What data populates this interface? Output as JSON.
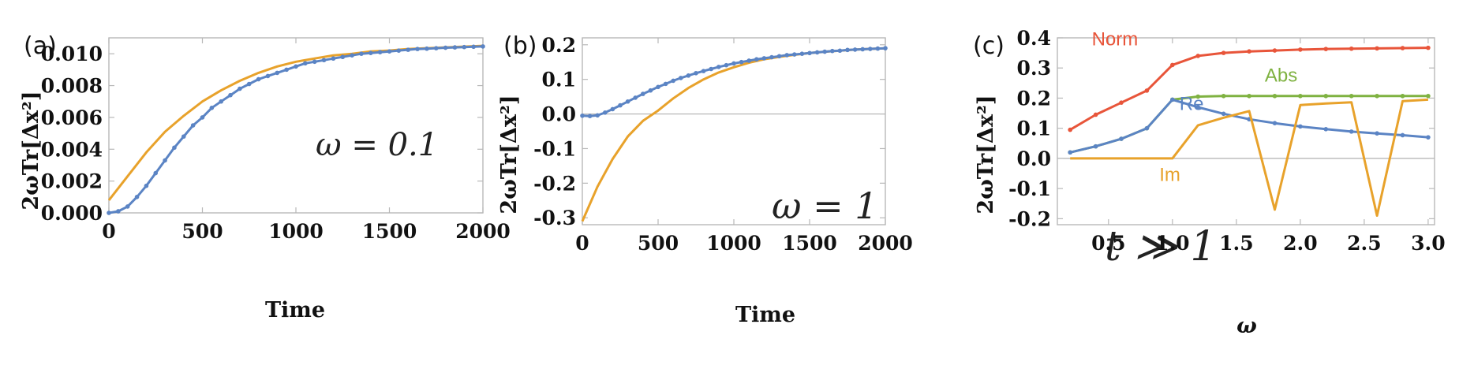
{
  "chart_data": [
    {
      "type": "line",
      "panel_label": "(a)",
      "annotation": "ω = 0.1",
      "xlabel": "Time",
      "ylabel": "2ωTr[Δx²]",
      "xlim": [
        0,
        2000
      ],
      "ylim": [
        0,
        0.011
      ],
      "xticks": [
        "0",
        "500",
        "1000",
        "1500",
        "2000"
      ],
      "yticks": [
        "0.000",
        "0.002",
        "0.004",
        "0.006",
        "0.008",
        "0.010"
      ],
      "series": [
        {
          "color": "#e8a22b",
          "marker": false,
          "x": [
            0,
            100,
            200,
            300,
            400,
            500,
            600,
            700,
            800,
            900,
            1000,
            1100,
            1200,
            1300,
            1400,
            1500,
            1600,
            1700,
            1800,
            1900,
            2000
          ],
          "y": [
            0.0008,
            0.0023,
            0.0038,
            0.0051,
            0.0061,
            0.007,
            0.0077,
            0.0083,
            0.0088,
            0.0092,
            0.0095,
            0.0097,
            0.0099,
            0.01,
            0.01015,
            0.0102,
            0.0103,
            0.01035,
            0.0104,
            0.01045,
            0.0105
          ]
        },
        {
          "color": "#5b84c4",
          "marker": true,
          "x": [
            0,
            50,
            100,
            150,
            200,
            250,
            300,
            350,
            400,
            450,
            500,
            550,
            600,
            650,
            700,
            750,
            800,
            850,
            900,
            950,
            1000,
            1050,
            1100,
            1150,
            1200,
            1250,
            1300,
            1350,
            1400,
            1450,
            1500,
            1550,
            1600,
            1650,
            1700,
            1750,
            1800,
            1850,
            1900,
            1950,
            2000
          ],
          "y": [
            0.0,
            0.0001,
            0.0004,
            0.001,
            0.0017,
            0.0025,
            0.0033,
            0.0041,
            0.0048,
            0.0055,
            0.006,
            0.0066,
            0.007,
            0.0074,
            0.0078,
            0.0081,
            0.0084,
            0.0086,
            0.0088,
            0.009,
            0.0092,
            0.0094,
            0.0095,
            0.0096,
            0.0097,
            0.0098,
            0.0099,
            0.01,
            0.01005,
            0.0101,
            0.01015,
            0.0102,
            0.01025,
            0.0103,
            0.01032,
            0.01035,
            0.01038,
            0.0104,
            0.01042,
            0.01044,
            0.01046
          ]
        }
      ]
    },
    {
      "type": "line",
      "panel_label": "(b)",
      "annotation": "ω = 1",
      "xlabel": "Time",
      "ylabel": "2ωTr[Δx²]",
      "xlim": [
        0,
        2000
      ],
      "ylim": [
        -0.32,
        0.22
      ],
      "xticks": [
        "0",
        "500",
        "1000",
        "1500",
        "2000"
      ],
      "yticks": [
        "-0.3",
        "-0.2",
        "-0.1",
        "0.0",
        "0.1",
        "0.2"
      ],
      "series": [
        {
          "color": "#e8a22b",
          "marker": false,
          "x": [
            0,
            100,
            200,
            300,
            400,
            500,
            600,
            700,
            800,
            900,
            1000,
            1100,
            1200,
            1300,
            1400,
            1500,
            1600,
            1700,
            1800,
            1900,
            2000
          ],
          "y": [
            -0.31,
            -0.21,
            -0.13,
            -0.065,
            -0.02,
            0.01,
            0.045,
            0.075,
            0.1,
            0.12,
            0.135,
            0.148,
            0.158,
            0.165,
            0.171,
            0.176,
            0.18,
            0.183,
            0.186,
            0.188,
            0.19
          ]
        },
        {
          "color": "#5b84c4",
          "marker": true,
          "x": [
            0,
            50,
            100,
            150,
            200,
            250,
            300,
            350,
            400,
            450,
            500,
            550,
            600,
            650,
            700,
            750,
            800,
            850,
            900,
            950,
            1000,
            1050,
            1100,
            1150,
            1200,
            1250,
            1300,
            1350,
            1400,
            1450,
            1500,
            1550,
            1600,
            1650,
            1700,
            1750,
            1800,
            1850,
            1900,
            1950,
            2000
          ],
          "y": [
            -0.005,
            -0.006,
            -0.004,
            0.004,
            0.014,
            0.025,
            0.036,
            0.047,
            0.058,
            0.068,
            0.078,
            0.087,
            0.096,
            0.104,
            0.111,
            0.118,
            0.124,
            0.13,
            0.136,
            0.141,
            0.146,
            0.15,
            0.154,
            0.158,
            0.161,
            0.164,
            0.167,
            0.17,
            0.172,
            0.174,
            0.176,
            0.178,
            0.18,
            0.182,
            0.183,
            0.185,
            0.186,
            0.187,
            0.188,
            0.189,
            0.19
          ]
        }
      ]
    },
    {
      "type": "line",
      "panel_label": "(c)",
      "annotation": "t ≫ 1",
      "xlabel": "ω",
      "ylabel": "2ωTr[Δx²]",
      "xlim": [
        0.1,
        3.05
      ],
      "ylim": [
        -0.22,
        0.4
      ],
      "xticks": [
        "0.5",
        "1.0",
        "1.5",
        "2.0",
        "2.5",
        "3.0"
      ],
      "yticks": [
        "-0.2",
        "-0.1",
        "0.0",
        "0.1",
        "0.2",
        "0.3",
        "0.4"
      ],
      "series": [
        {
          "name": "Norm",
          "color": "#e8553a",
          "marker": true,
          "x": [
            0.2,
            0.4,
            0.6,
            0.8,
            1.0,
            1.2,
            1.4,
            1.6,
            1.8,
            2.0,
            2.2,
            2.4,
            2.6,
            2.8,
            3.0
          ],
          "y": [
            0.095,
            0.145,
            0.185,
            0.225,
            0.31,
            0.34,
            0.35,
            0.355,
            0.358,
            0.361,
            0.363,
            0.364,
            0.365,
            0.366,
            0.367
          ]
        },
        {
          "name": "Abs",
          "color": "#7fb241",
          "marker": true,
          "x": [
            0.2,
            0.4,
            0.6,
            0.8,
            1.0,
            1.2,
            1.4,
            1.6,
            1.8,
            2.0,
            2.2,
            2.4,
            2.6,
            2.8,
            3.0
          ],
          "y": [
            0.02,
            0.04,
            0.065,
            0.1,
            0.195,
            0.205,
            0.207,
            0.207,
            0.207,
            0.207,
            0.207,
            0.207,
            0.207,
            0.207,
            0.207
          ]
        },
        {
          "name": "Re",
          "color": "#5b84c4",
          "marker": true,
          "x": [
            0.2,
            0.4,
            0.6,
            0.8,
            1.0,
            1.2,
            1.4,
            1.6,
            1.8,
            2.0,
            2.2,
            2.4,
            2.6,
            2.8,
            3.0
          ],
          "y": [
            0.02,
            0.04,
            0.065,
            0.1,
            0.195,
            0.17,
            0.148,
            0.13,
            0.117,
            0.106,
            0.097,
            0.089,
            0.083,
            0.077,
            0.07
          ]
        },
        {
          "name": "Im",
          "color": "#e8a22b",
          "marker": false,
          "x": [
            0.2,
            0.4,
            0.6,
            0.8,
            1.0,
            1.2,
            1.4,
            1.6,
            1.8,
            2.0,
            2.2,
            2.4,
            2.6,
            2.8,
            3.0
          ],
          "y": [
            0.0,
            0.0,
            0.0,
            0.0,
            0.0,
            0.11,
            0.135,
            0.157,
            -0.17,
            0.177,
            0.182,
            0.186,
            -0.19,
            0.19,
            0.195
          ]
        }
      ]
    }
  ]
}
